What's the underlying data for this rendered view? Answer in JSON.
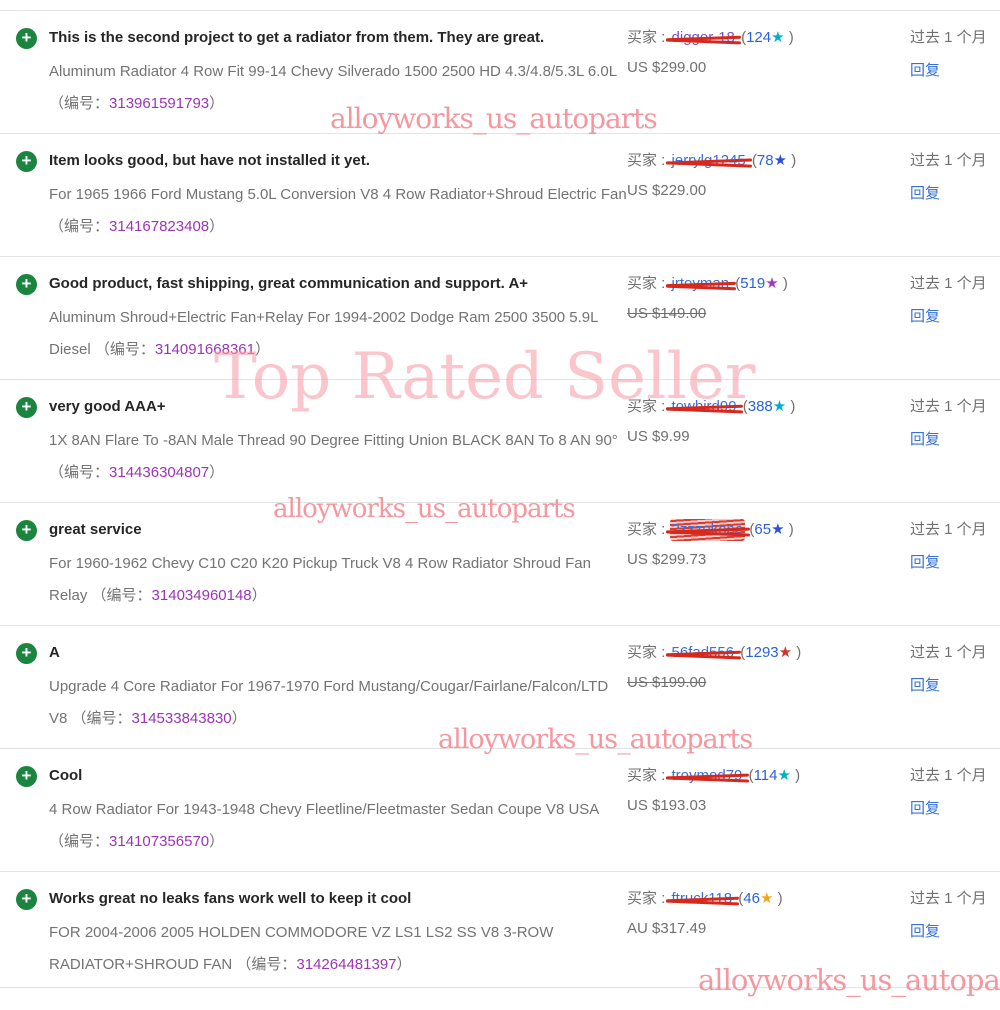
{
  "page": {
    "labels": {
      "buyer_label": "买家 :",
      "open_paren": "(",
      "close_paren": " )",
      "star": "★",
      "time": "过去 1 个月",
      "reply": "回复"
    }
  },
  "watermarks": {
    "store": "alloyworks_us_autoparts",
    "banner": "Top Rated Seller"
  },
  "colors": {
    "positive_icon_green": "#1b8540",
    "link_blue": "#3672d8",
    "item_number_purple": "#9b35b5",
    "scribble_red": "#d8281c",
    "watermark_pink": "#f37d87"
  },
  "feedback": [
    {
      "comment": "This is the second project to get a radiator from them. They are great.",
      "item": "Aluminum Radiator 4 Row Fit 99-14 Chevy Silverado 1500 2500 HD 4.3/4.8/5.3L 6.0L ",
      "item_label": "（编号：",
      "item_number": "313961591793",
      "item_close": "）",
      "buyer": "digger-18",
      "name_color": "#7a52c8",
      "count": "124",
      "star_color": "#00aec8",
      "price": "US $299.00",
      "price_struck": false,
      "scribble_heavy": false
    },
    {
      "comment": "Item looks good, but have not installed it yet.",
      "item": "For 1965 1966 Ford Mustang 5.0L Conversion V8 4 Row Radiator+Shroud Electric Fan ",
      "item_label": "（编号：",
      "item_number": "314167823408",
      "item_close": "）",
      "buyer": "jerrylg1245",
      "name_color": "#3b6fd4",
      "count": "78",
      "star_color": "#2b51d8",
      "price": "US $229.00",
      "price_struck": false,
      "scribble_heavy": false
    },
    {
      "comment": "Good product, fast shipping, great communication and support. A+",
      "item": "Aluminum Shroud+Electric Fan+Relay For 1994-2002 Dodge Ram 2500 3500 5.9L Diesel ",
      "item_label": "（编号：",
      "item_number": "314091668361",
      "item_close": "）",
      "buyer": "jrtoyman",
      "name_color": "#3b6fd4",
      "count": "519",
      "star_color": "#9b3bc0",
      "price": "US $149.00",
      "price_struck": true,
      "scribble_heavy": false
    },
    {
      "comment": "very good AAA+",
      "item": "1X 8AN Flare To -8AN Male Thread 90 Degree Fitting Union BLACK 8AN To 8 AN 90° ",
      "item_label": "（编号：",
      "item_number": "314436304807",
      "item_close": "）",
      "buyer": "towbird99",
      "name_color": "#3b6fd4",
      "count": "388",
      "star_color": "#00aec8",
      "price": "US $9.99",
      "price_struck": false,
      "scribble_heavy": false
    },
    {
      "comment": "great service",
      "item": "For 1960-1962 Chevy C10 C20 K20 Pickup Truck V8 4 Row Radiator Shroud Fan Relay ",
      "item_label": "（编号：",
      "item_number": "314034960148",
      "item_close": "）",
      "buyer": "2zzzekone",
      "name_color": "#3b6fd4",
      "count": "65",
      "star_color": "#2b51d8",
      "price": "US $299.73",
      "price_struck": false,
      "scribble_heavy": true
    },
    {
      "comment": "A",
      "item": "Upgrade 4 Core Radiator For 1967-1970 Ford Mustang/Cougar/Fairlane/Falcon/LTD V8 ",
      "item_label": "（编号：",
      "item_number": "314533843830",
      "item_close": "）",
      "buyer": "56fad556",
      "name_color": "#3b6fd4",
      "count": "1293",
      "star_color": "#cd3327",
      "price": "US $199.00",
      "price_struck": true,
      "scribble_heavy": false
    },
    {
      "comment": "Cool",
      "item": "4 Row Radiator For 1943-1948 Chevy Fleetline/Fleetmaster Sedan Coupe V8 USA ",
      "item_label": "（编号：",
      "item_number": "314107356570",
      "item_close": "）",
      "buyer": "troymod79",
      "name_color": "#3b6fd4",
      "count": "114",
      "star_color": "#00aec8",
      "price": "US $193.03",
      "price_struck": false,
      "scribble_heavy": false
    },
    {
      "comment": "Works great no leaks fans work well to keep it cool",
      "item": "FOR 2004-2006 2005 HOLDEN COMMODORE VZ LS1 LS2 SS V8 3-ROW RADIATOR+SHROUD FAN ",
      "item_label": "（编号：",
      "item_number": "314264481397",
      "item_close": "）",
      "buyer": "ftruck118",
      "name_color": "#3b6fd4",
      "count": "46",
      "star_color": "#f0a818",
      "price": "AU $317.49",
      "price_struck": false,
      "scribble_heavy": false
    }
  ]
}
